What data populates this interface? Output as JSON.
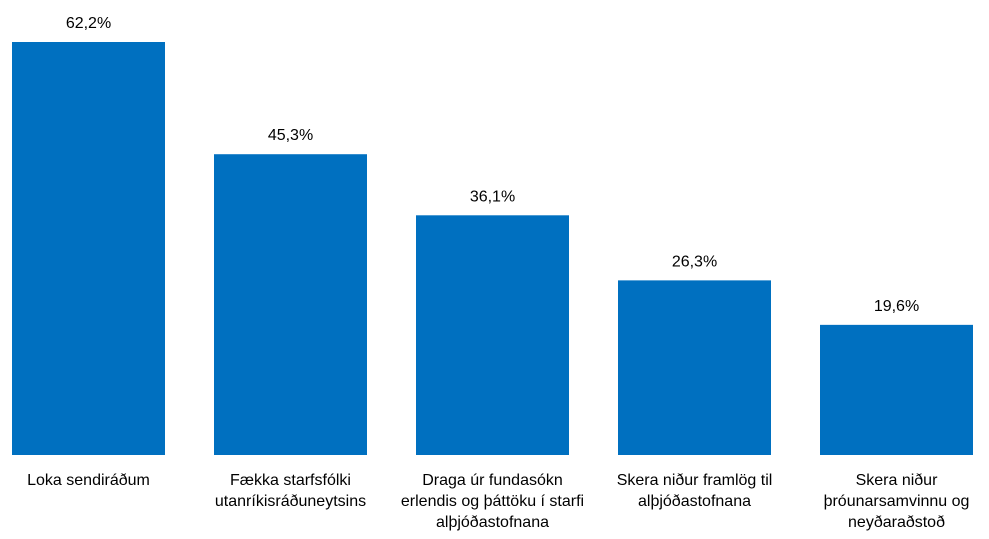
{
  "chart_data": {
    "type": "bar",
    "categories": [
      [
        "Loka sendiráðum"
      ],
      [
        "Fækka starfsfólki",
        "utanríkisráðuneytsins"
      ],
      [
        "Draga úr fundasókn",
        "erlendis og þáttöku í starfi",
        "alþjóðastofnana"
      ],
      [
        "Skera niður framlög til",
        "alþjóðastofnana"
      ],
      [
        "Skera niður",
        "þróunarsamvinnu og",
        "neyðaraðstoð"
      ]
    ],
    "values": [
      62.2,
      45.3,
      36.1,
      26.3,
      19.6
    ],
    "value_labels": [
      "62,2%",
      "45,3%",
      "36,1%",
      "26,3%",
      "19,6%"
    ],
    "ylim": [
      0,
      62.2
    ],
    "grid": false,
    "bar_color": "#0070C0"
  }
}
